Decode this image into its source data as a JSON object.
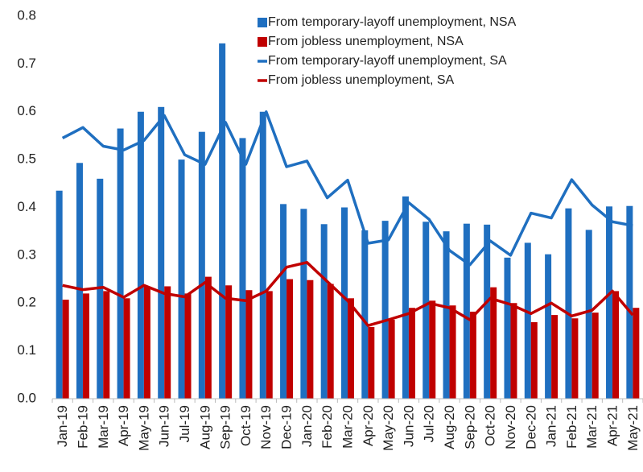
{
  "chart_data": {
    "type": "bar",
    "categories": [
      "Jan-19",
      "Feb-19",
      "Mar-19",
      "Apr-19",
      "May-19",
      "Jun-19",
      "Jul-19",
      "Aug-19",
      "Sep-19",
      "Oct-19",
      "Nov-19",
      "Dec-19",
      "Jan-20",
      "Feb-20",
      "Mar-20",
      "Apr-20",
      "May-20",
      "Jun-20",
      "Jul-20",
      "Aug-20",
      "Sep-20",
      "Oct-20",
      "Nov-20",
      "Dec-20",
      "Jan-21",
      "Feb-21",
      "Mar-21",
      "Apr-21",
      "May-21"
    ],
    "series": [
      {
        "name": "From temporary-layoff unemployment, NSA",
        "type": "bar",
        "color": "#1f6fc0",
        "values": [
          0.435,
          0.493,
          0.46,
          0.565,
          0.6,
          0.61,
          0.5,
          0.558,
          0.743,
          0.545,
          0.6,
          0.407,
          0.397,
          0.365,
          0.4,
          0.352,
          0.372,
          0.423,
          0.37,
          0.35,
          0.366,
          0.364,
          0.295,
          0.326,
          0.302,
          0.398,
          0.353,
          0.402,
          0.403
        ]
      },
      {
        "name": "From jobless unemployment, NSA",
        "type": "bar",
        "color": "#c00000",
        "values": [
          0.207,
          0.22,
          0.225,
          0.21,
          0.235,
          0.235,
          0.22,
          0.255,
          0.237,
          0.227,
          0.225,
          0.25,
          0.248,
          0.24,
          0.21,
          0.15,
          0.165,
          0.19,
          0.205,
          0.195,
          0.182,
          0.233,
          0.2,
          0.16,
          0.175,
          0.168,
          0.18,
          0.225,
          0.19
        ]
      },
      {
        "name": "From temporary-layoff unemployment, SA",
        "type": "line",
        "color": "#1f6fc0",
        "values": [
          0.545,
          0.567,
          0.528,
          0.52,
          0.54,
          0.592,
          0.51,
          0.49,
          0.578,
          0.49,
          0.6,
          0.485,
          0.497,
          0.42,
          0.457,
          0.325,
          0.332,
          0.41,
          0.375,
          0.31,
          0.28,
          0.33,
          0.3,
          0.388,
          0.378,
          0.458,
          0.405,
          0.37,
          0.362
        ]
      },
      {
        "name": "From jobless unemployment, SA",
        "type": "line",
        "color": "#c00000",
        "values": [
          0.237,
          0.228,
          0.233,
          0.212,
          0.237,
          0.22,
          0.213,
          0.243,
          0.21,
          0.205,
          0.225,
          0.275,
          0.285,
          0.245,
          0.205,
          0.153,
          0.165,
          0.178,
          0.2,
          0.19,
          0.165,
          0.21,
          0.197,
          0.178,
          0.2,
          0.173,
          0.185,
          0.225,
          0.175
        ]
      }
    ],
    "ylim": [
      0,
      0.8
    ],
    "yticks": [
      {
        "value": 0,
        "label": "0.0"
      },
      0.1,
      0.2,
      0.3,
      0.4,
      0.5,
      0.6,
      0.7,
      0.8
    ],
    "grid": false,
    "legend": "top-right"
  }
}
